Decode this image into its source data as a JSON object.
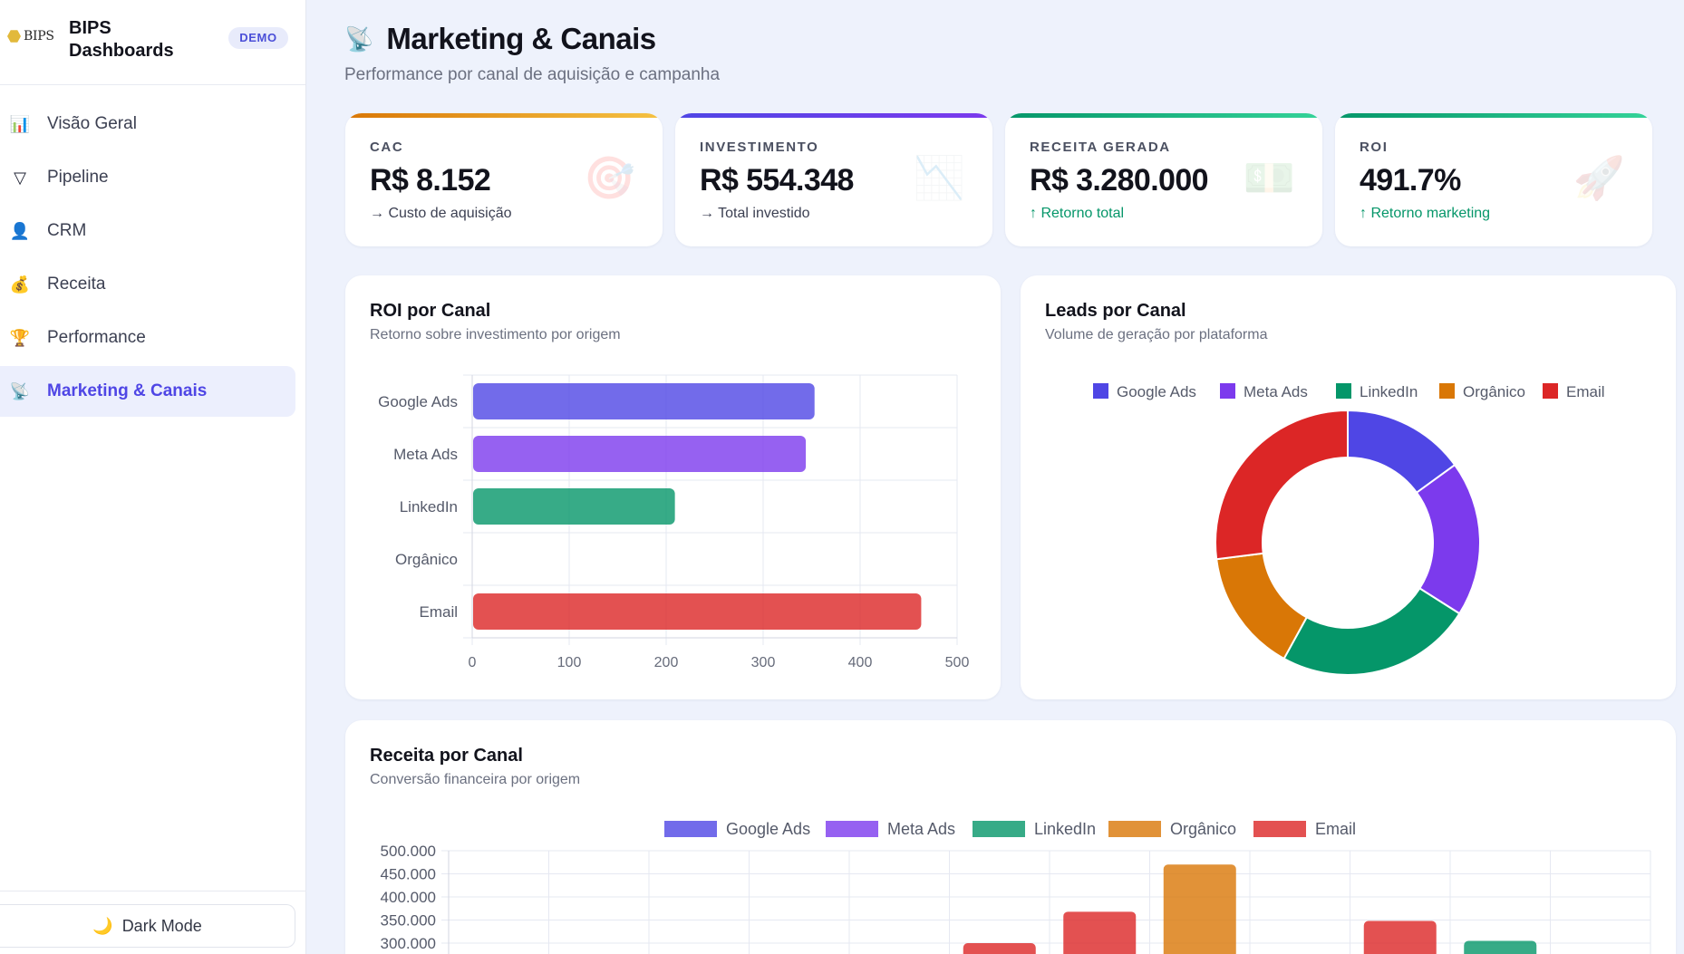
{
  "brand": {
    "logo_text": "BIPS",
    "title_line1": "BIPS",
    "title_line2": "Dashboards",
    "badge": "DEMO"
  },
  "nav": [
    {
      "label": "Visão Geral",
      "icon": "bar-chart-icon",
      "glyph": "📊",
      "active": false
    },
    {
      "label": "Pipeline",
      "icon": "funnel-icon",
      "glyph": "▽",
      "active": false
    },
    {
      "label": "CRM",
      "icon": "person-icon",
      "glyph": "👤",
      "active": false
    },
    {
      "label": "Receita",
      "icon": "money-bag-icon",
      "glyph": "💰",
      "active": false
    },
    {
      "label": "Performance",
      "icon": "trophy-icon",
      "glyph": "🏆",
      "active": false
    },
    {
      "label": "Marketing & Canais",
      "icon": "satellite-dish-icon",
      "glyph": "📡",
      "active": true
    }
  ],
  "footer": {
    "dark_mode_label": "Dark Mode",
    "icon": "moon-icon"
  },
  "page": {
    "title": "Marketing & Canais",
    "subtitle": "Performance por canal de aquisição e campanha",
    "icon": "satellite-dish-icon"
  },
  "kpis": [
    {
      "label": "CAC",
      "value": "R$ 8.152",
      "sub": "→ Custo de aquisição",
      "trend": "neutral",
      "icon": "target-icon",
      "glyph": "🎯",
      "accent": [
        "#d97706",
        "#f5c242"
      ]
    },
    {
      "label": "INVESTIMENTO",
      "value": "R$ 554.348",
      "sub": "→ Total investido",
      "trend": "neutral",
      "icon": "chart-decreasing-icon",
      "glyph": "📉",
      "accent": [
        "#4f46e5",
        "#7c3aed"
      ]
    },
    {
      "label": "RECEITA GERADA",
      "value": "R$ 3.280.000",
      "sub": "↑ Retorno total",
      "trend": "positive",
      "icon": "money-icon",
      "glyph": "💵",
      "accent": [
        "#059669",
        "#34d399"
      ]
    },
    {
      "label": "ROI",
      "value": "491.7%",
      "sub": "↑ Retorno marketing",
      "trend": "positive",
      "icon": "rocket-icon",
      "glyph": "🚀",
      "accent": [
        "#059669",
        "#34d399"
      ]
    }
  ],
  "panels": {
    "roi": {
      "title": "ROI por Canal",
      "subtitle": "Retorno sobre investimento por origem"
    },
    "leads": {
      "title": "Leads por Canal",
      "subtitle": "Volume de geração por plataforma"
    },
    "receita": {
      "title": "Receita por Canal",
      "subtitle": "Conversão financeira por origem"
    }
  },
  "colors": {
    "google": "#4f46e5",
    "meta": "#7c3aed",
    "linkedin": "#059669",
    "organico": "#d97706",
    "email": "#dc2626"
  },
  "chart_data": [
    {
      "type": "bar",
      "orientation": "horizontal",
      "categories": [
        "Google Ads",
        "Meta Ads",
        "LinkedIn",
        "Orgânico",
        "Email"
      ],
      "values": [
        353,
        344,
        209,
        0,
        463
      ],
      "colors": [
        "#4f46e5",
        "#7c3aed",
        "#059669",
        "#d97706",
        "#dc2626"
      ],
      "xlim": [
        0,
        500
      ],
      "xticks": [
        0,
        100,
        200,
        300,
        400,
        500
      ],
      "grid": true
    },
    {
      "type": "pie",
      "donut": true,
      "labels": [
        "Google Ads",
        "Meta Ads",
        "LinkedIn",
        "Orgânico",
        "Email"
      ],
      "values": [
        15,
        19,
        24,
        15,
        27
      ],
      "colors": [
        "#4f46e5",
        "#7c3aed",
        "#059669",
        "#d97706",
        "#dc2626"
      ],
      "legend": "top"
    },
    {
      "type": "bar",
      "orientation": "vertical",
      "legend": "top",
      "series_names": [
        "Google Ads",
        "Meta Ads",
        "LinkedIn",
        "Orgânico",
        "Email"
      ],
      "colors": [
        "#4f46e5",
        "#7c3aed",
        "#059669",
        "#d97706",
        "#dc2626"
      ],
      "yticks_visible": [
        "500.000",
        "450.000",
        "400.000",
        "350.000",
        "300.000"
      ],
      "ylim": [
        0,
        500000
      ],
      "grid": true,
      "visible_bars": [
        {
          "series": "Email",
          "group": 5,
          "value": 300000
        },
        {
          "series": "Email",
          "group": 6,
          "value": 368000
        },
        {
          "series": "Orgânico",
          "group": 7,
          "value": 470000
        },
        {
          "series": "Email",
          "group": 9,
          "value": 348000
        },
        {
          "series": "LinkedIn",
          "group": 10,
          "value": 305000
        }
      ]
    }
  ]
}
